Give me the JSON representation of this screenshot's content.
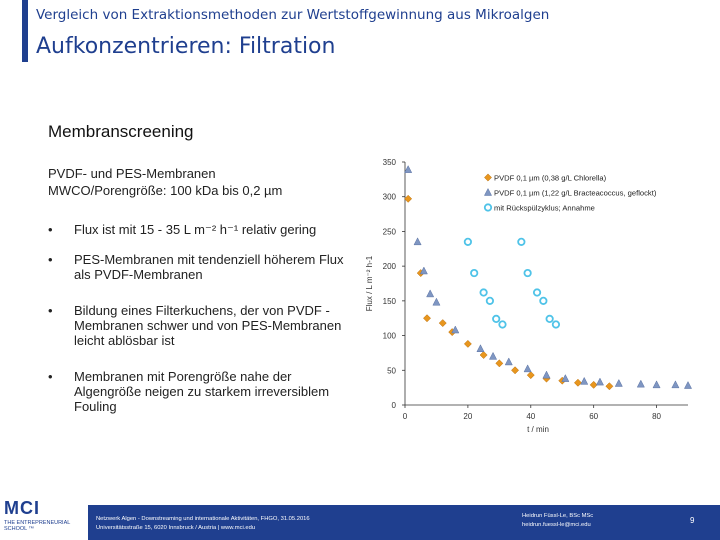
{
  "header": {
    "supertitle": "Vergleich von Extraktionsmethoden zur Wertstoffgewinnung aus Mikroalgen",
    "title": "Aufkonzentrieren: Filtration"
  },
  "section_title": "Membranscreening",
  "lead": {
    "line1": "PVDF- und PES-Membranen",
    "line2": "MWCO/Porengröße: 100 kDa bis 0,2 µm"
  },
  "bullets": [
    {
      "symbol": "•",
      "text": "Flux ist mit 15 - 35 L m⁻² h⁻¹ relativ gering"
    },
    {
      "symbol": "•",
      "text": "PES-Membranen mit tendenziell höherem Flux als PVDF-Membranen"
    },
    {
      "symbol": "•",
      "text": "Bildung eines Filterkuchens, der von PVDF -Membranen schwer und von PES-Membranen leicht ablösbar ist"
    },
    {
      "symbol": "•",
      "text": "Membranen mit Porengröße nahe der Algengröße neigen zu starkem irreversiblem Fouling"
    }
  ],
  "colors": {
    "brand": "#1f3f8f",
    "series_orange": "#e8961e",
    "series_blue_gray": "#7f96c2",
    "series_cyan": "#4fc3e8"
  },
  "chart_data": {
    "type": "scatter",
    "xlabel": "t / min",
    "ylabel": "Flux / L m⁻² h-1",
    "xlim": [
      0,
      90
    ],
    "ylim": [
      0,
      350
    ],
    "x_ticks": [
      "0",
      "20",
      "40",
      "60",
      "80"
    ],
    "y_ticks": [
      "0",
      "50",
      "100",
      "150",
      "200",
      "250",
      "300",
      "350"
    ],
    "legend_position": "top-right",
    "series": [
      {
        "name": "PVDF 0,1 µm (0,38 g/L Chlorella)",
        "marker": "diamond",
        "color": "#e8961e",
        "points": [
          [
            1,
            297
          ],
          [
            5,
            190
          ],
          [
            7,
            125
          ],
          [
            12,
            118
          ],
          [
            15,
            105
          ],
          [
            20,
            88
          ],
          [
            25,
            72
          ],
          [
            30,
            60
          ],
          [
            35,
            50
          ],
          [
            40,
            43
          ],
          [
            45,
            38
          ],
          [
            50,
            35
          ],
          [
            55,
            32
          ],
          [
            60,
            29
          ],
          [
            65,
            27
          ]
        ]
      },
      {
        "name": "PVDF 0,1 µm (1,22 g/L Bracteacoccus, geflockt)",
        "marker": "triangle",
        "color": "#7f96c2",
        "points": [
          [
            1,
            339
          ],
          [
            4,
            235
          ],
          [
            6,
            193
          ],
          [
            8,
            160
          ],
          [
            10,
            148
          ],
          [
            16,
            108
          ],
          [
            24,
            81
          ],
          [
            28,
            70
          ],
          [
            33,
            62
          ],
          [
            39,
            52
          ],
          [
            45,
            43
          ],
          [
            51,
            38
          ],
          [
            57,
            34
          ],
          [
            62,
            33
          ],
          [
            68,
            31
          ],
          [
            75,
            30
          ],
          [
            80,
            29
          ],
          [
            86,
            29
          ],
          [
            90,
            28
          ]
        ]
      },
      {
        "name": "mit Rückspülzyklus; Annahme",
        "marker": "circle",
        "color": "#4fc3e8",
        "points": [
          [
            20,
            235
          ],
          [
            22,
            190
          ],
          [
            25,
            162
          ],
          [
            27,
            150
          ],
          [
            29,
            124
          ],
          [
            31,
            116
          ],
          [
            37,
            235
          ],
          [
            39,
            190
          ],
          [
            42,
            162
          ],
          [
            44,
            150
          ],
          [
            46,
            124
          ],
          [
            48,
            116
          ]
        ]
      }
    ]
  },
  "footer": {
    "logo": "MCI",
    "logo_sub": "THE ENTREPRENEURIAL SCHOOL ™",
    "left_line1": "Netzwerk Algen - Downstreaming und internationale Aktivitäten, FHGO, 31.05.2016",
    "left_line2": "Universitätsstraße 15, 6020 Innsbruck / Austria | www.mci.edu",
    "right_line1": "Heidrun Füssl-Le, BSc MSc",
    "right_line2": "heidrun.fuessl-le@mci.edu",
    "page_number": "9"
  }
}
